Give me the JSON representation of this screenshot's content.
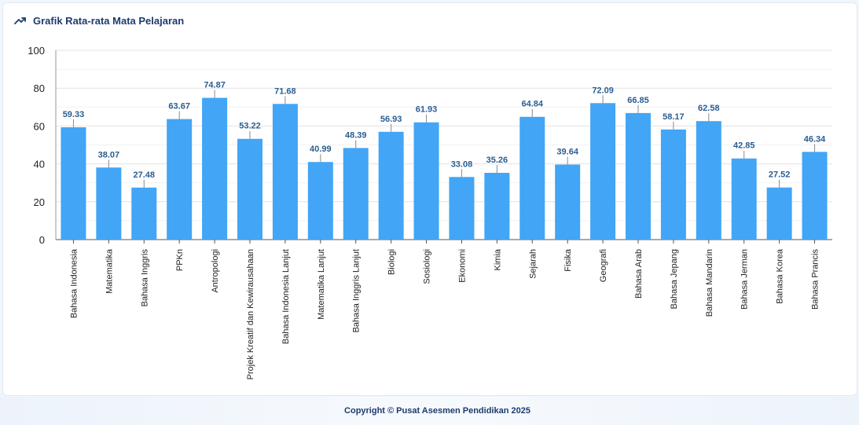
{
  "header": {
    "title": "Grafik Rata-rata Mata Pelajaran",
    "icon": "trending-up-icon"
  },
  "footer": {
    "text": "Copyright © Pusat Asesmen Pendidikan 2025"
  },
  "colors": {
    "bar": "#42a5f5",
    "value_label": "#2a5d92",
    "title": "#1e3a6e"
  },
  "chart_data": {
    "type": "bar",
    "title": "Grafik Rata-rata Mata Pelajaran",
    "xlabel": "",
    "ylabel": "",
    "ylim": [
      0,
      100
    ],
    "yticks": [
      0,
      20,
      40,
      60,
      80,
      100
    ],
    "categories": [
      "Bahasa Indonesia",
      "Matematika",
      "Bahasa Inggris",
      "PPKn",
      "Antropologi",
      "Projek Kreatif dan Kewirausahaan",
      "Bahasa Indonesia Lanjut",
      "Matematika Lanjut",
      "Bahasa Inggris Lanjut",
      "Biologi",
      "Sosiologi",
      "Ekonomi",
      "Kimia",
      "Sejarah",
      "Fisika",
      "Geografi",
      "Bahasa Arab",
      "Bahasa Jepang",
      "Bahasa Mandarin",
      "Bahasa Jerman",
      "Bahasa Korea",
      "Bahasa Prancis"
    ],
    "values": [
      59.33,
      38.07,
      27.48,
      63.67,
      74.87,
      53.22,
      71.68,
      40.99,
      48.39,
      56.93,
      61.93,
      33.08,
      35.26,
      64.84,
      39.64,
      72.09,
      66.85,
      58.17,
      62.58,
      42.85,
      27.52,
      46.34
    ],
    "value_labels": [
      "59.33",
      "38.07",
      "27.48",
      "63.67",
      "74.87",
      "53.22",
      "71.68",
      "40.99",
      "48.39",
      "56.93",
      "61.93",
      "33.08",
      "35.26",
      "64.84",
      "39.64",
      "72.09",
      "66.85",
      "58.17",
      "62.58",
      "42.85",
      "27.52",
      "46.34"
    ]
  }
}
